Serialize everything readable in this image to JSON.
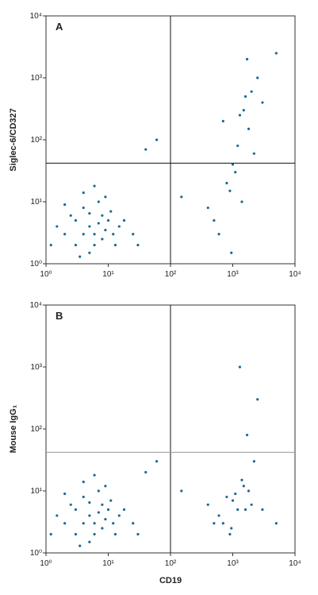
{
  "chart_data": [
    {
      "type": "scatter",
      "panel_label": "A",
      "y_label": "Siglec-6/CD327",
      "xscale": "log",
      "yscale": "log",
      "xlim": [
        1,
        10000
      ],
      "ylim": [
        1,
        10000
      ],
      "xticks": [
        {
          "value": 1,
          "label": "10⁰"
        },
        {
          "value": 10,
          "label": "10¹"
        },
        {
          "value": 100,
          "label": "10²"
        },
        {
          "value": 1000,
          "label": "10³"
        },
        {
          "value": 10000,
          "label": "10⁴"
        }
      ],
      "yticks": [
        {
          "value": 1,
          "label": "10⁰"
        },
        {
          "value": 10,
          "label": "10¹"
        },
        {
          "value": 100,
          "label": "10²"
        },
        {
          "value": 1000,
          "label": "10³"
        },
        {
          "value": 10000,
          "label": "10⁴"
        }
      ],
      "quadrant": {
        "x": 100,
        "y": 42,
        "x_color": "#111111",
        "y_color": "#111111"
      },
      "series": [
        {
          "color": "#1b6a91",
          "x": [
            2,
            3,
            5,
            8,
            6,
            4,
            10,
            12,
            7,
            3,
            1.5,
            2.5,
            9,
            15,
            5,
            6,
            4,
            8,
            11,
            3.5,
            2,
            7,
            5,
            13,
            6,
            9,
            1.2,
            4,
            18,
            25,
            30,
            500,
            800,
            1200,
            1500,
            2000,
            900,
            1800,
            600,
            1000,
            2500,
            1400,
            700,
            1100,
            1600,
            2200,
            400,
            1300,
            950,
            1700,
            150,
            3000,
            40,
            60,
            5000
          ],
          "values": [
            3,
            5,
            4,
            6,
            2,
            8,
            5,
            3,
            10,
            2,
            4,
            6,
            12,
            4,
            1.5,
            3,
            14,
            2.5,
            7,
            1.3,
            9,
            4.5,
            6.5,
            2,
            18,
            3.5,
            2,
            3,
            5,
            3,
            2,
            5,
            20,
            80,
            300,
            600,
            15,
            150,
            3,
            40,
            1000,
            10,
            200,
            30,
            500,
            60,
            8,
            250,
            1.5,
            2000,
            12,
            400,
            70,
            100,
            2500
          ]
        }
      ]
    },
    {
      "type": "scatter",
      "panel_label": "B",
      "y_label": "Mouse IgG₁",
      "x_label": "CD19",
      "xscale": "log",
      "yscale": "log",
      "xlim": [
        1,
        10000
      ],
      "ylim": [
        1,
        10000
      ],
      "xticks": [
        {
          "value": 1,
          "label": "10⁰"
        },
        {
          "value": 10,
          "label": "10¹"
        },
        {
          "value": 100,
          "label": "10²"
        },
        {
          "value": 1000,
          "label": "10³"
        },
        {
          "value": 10000,
          "label": "10⁴"
        }
      ],
      "yticks": [
        {
          "value": 1,
          "label": "10⁰"
        },
        {
          "value": 10,
          "label": "10¹"
        },
        {
          "value": 100,
          "label": "10²"
        },
        {
          "value": 1000,
          "label": "10³"
        },
        {
          "value": 10000,
          "label": "10⁴"
        }
      ],
      "quadrant": {
        "x": 100,
        "y": 42,
        "x_color": "#111111",
        "y_color": "#999999"
      },
      "series": [
        {
          "color": "#1b6a91",
          "x": [
            2,
            3,
            5,
            8,
            6,
            4,
            10,
            12,
            7,
            3,
            1.5,
            2.5,
            9,
            15,
            5,
            6,
            4,
            8,
            11,
            3.5,
            2,
            7,
            5,
            13,
            6,
            9,
            1.2,
            4,
            18,
            25,
            30,
            500,
            800,
            1200,
            1500,
            2000,
            900,
            1800,
            600,
            1000,
            2500,
            1400,
            700,
            1100,
            1600,
            2200,
            400,
            1300,
            950,
            1700,
            150,
            3000,
            40,
            60,
            5000
          ],
          "values": [
            3,
            5,
            4,
            6,
            2,
            8,
            5,
            3,
            10,
            2,
            4,
            6,
            12,
            4,
            1.5,
            3,
            14,
            2.5,
            7,
            1.3,
            9,
            4.5,
            6.5,
            2,
            18,
            3.5,
            2,
            3,
            5,
            3,
            2,
            3,
            8,
            5,
            12,
            6,
            2,
            10,
            4,
            7,
            300,
            15,
            3,
            9,
            5,
            30,
            6,
            1000,
            2.5,
            80,
            10,
            5,
            20,
            30,
            3
          ]
        }
      ]
    }
  ]
}
